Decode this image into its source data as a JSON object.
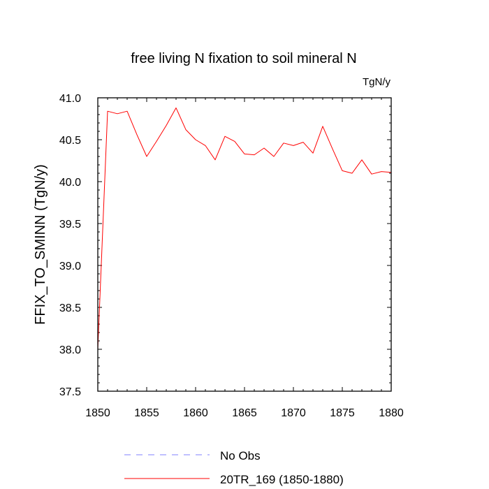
{
  "chart_data": {
    "type": "line",
    "title": "free living N fixation to soil mineral N",
    "units_label": "TgN/y",
    "ylabel": "FFIX_TO_SMINN  (TgN/y)",
    "xlabel": "",
    "xlim": [
      1850,
      1880
    ],
    "ylim": [
      37.5,
      41.0
    ],
    "x_ticks": [
      1850,
      1855,
      1860,
      1865,
      1870,
      1875,
      1880
    ],
    "y_ticks": [
      37.5,
      38.0,
      38.5,
      39.0,
      39.5,
      40.0,
      40.5,
      41.0
    ],
    "x_tick_labels": [
      "1850",
      "1855",
      "1860",
      "1865",
      "1870",
      "1875",
      "1880"
    ],
    "y_tick_labels": [
      "37.5",
      "38.0",
      "38.5",
      "39.0",
      "39.5",
      "40.0",
      "40.5",
      "41.0"
    ],
    "grid": false,
    "legend_position": "bottom",
    "series": [
      {
        "name": "20TR_169 (1850-1880)",
        "color": "#ff0000",
        "style": "solid",
        "x": [
          1850,
          1851,
          1852,
          1853,
          1854,
          1855,
          1856,
          1857,
          1858,
          1859,
          1860,
          1861,
          1862,
          1863,
          1864,
          1865,
          1866,
          1867,
          1868,
          1869,
          1870,
          1871,
          1872,
          1873,
          1874,
          1875,
          1876,
          1877,
          1878,
          1879,
          1880
        ],
        "values": [
          38.0,
          40.84,
          40.81,
          40.84,
          40.56,
          40.3,
          40.48,
          40.67,
          40.88,
          40.62,
          40.5,
          40.43,
          40.26,
          40.54,
          40.48,
          40.33,
          40.32,
          40.4,
          40.3,
          40.46,
          40.43,
          40.47,
          40.34,
          40.66,
          40.39,
          40.13,
          40.1,
          40.26,
          40.09,
          40.12,
          40.11
        ]
      }
    ],
    "legend": [
      {
        "label": "No Obs",
        "color": "#8080ff",
        "style": "dashed"
      },
      {
        "label": "20TR_169 (1850-1880)",
        "color": "#ff0000",
        "style": "solid"
      }
    ]
  }
}
